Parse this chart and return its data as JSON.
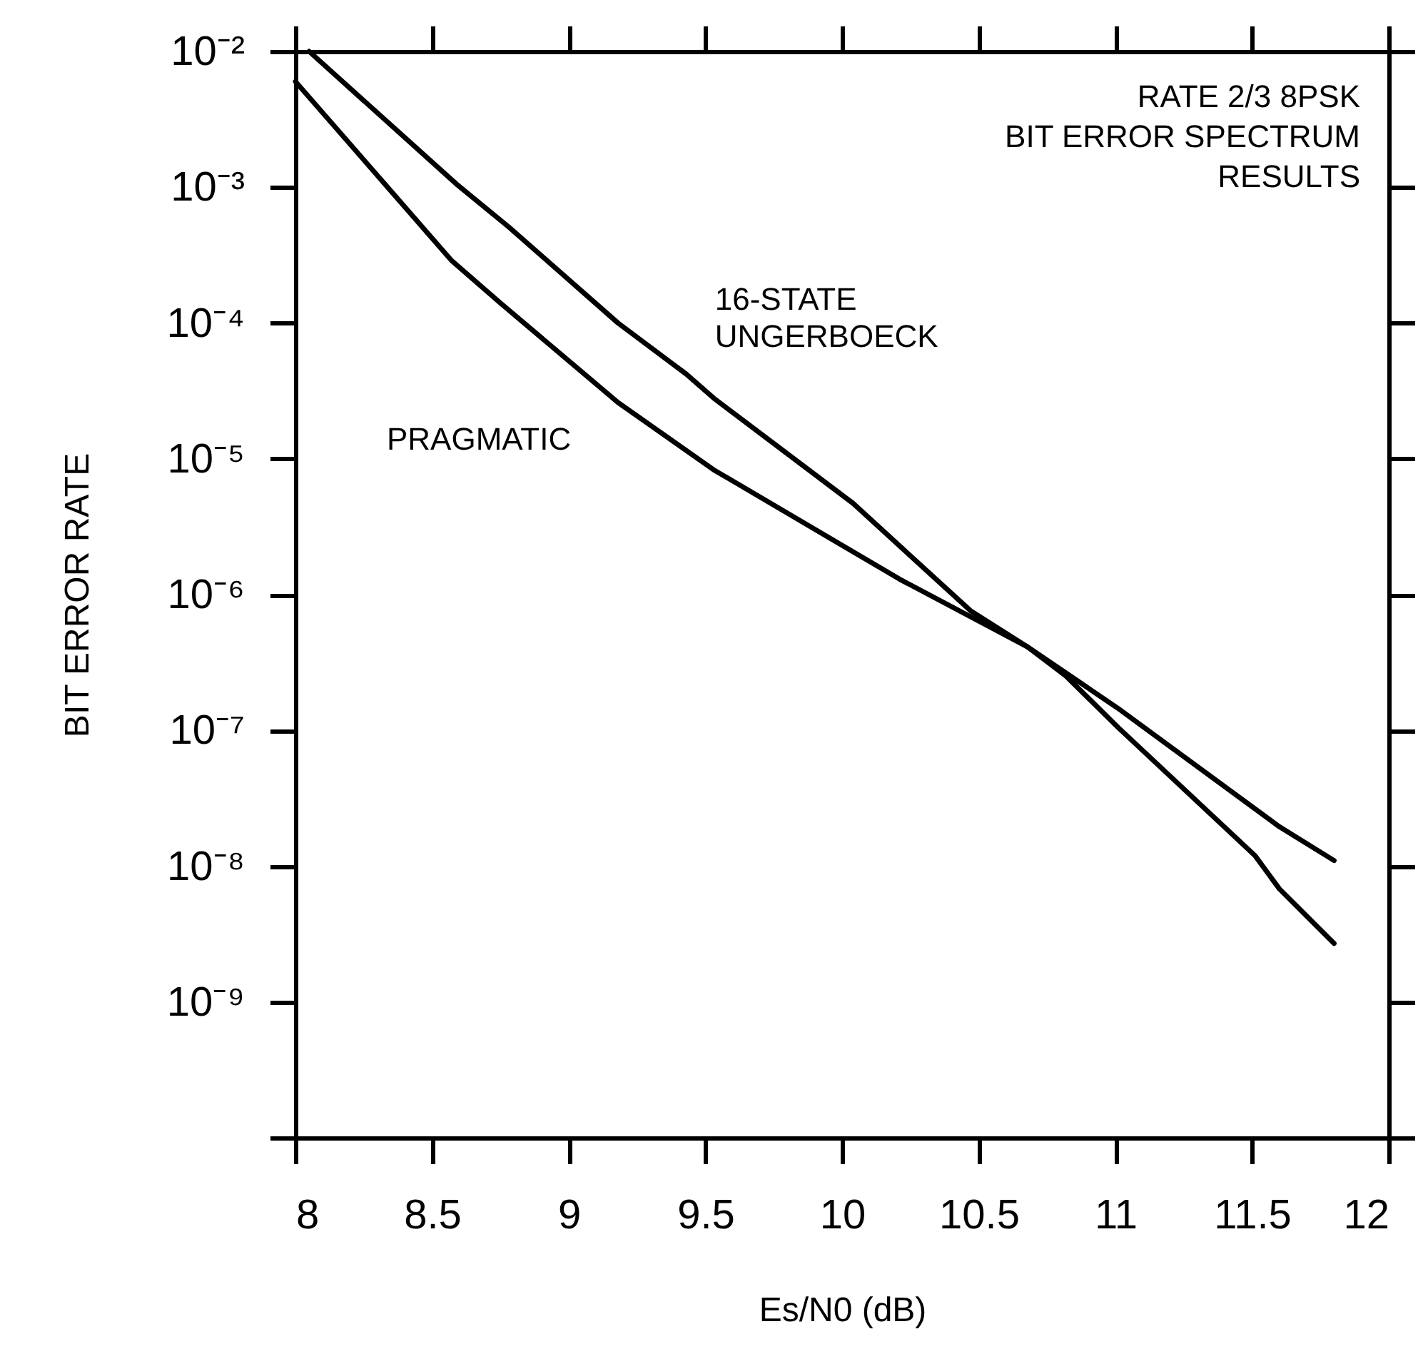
{
  "chart_data": {
    "type": "line",
    "title": "RATE 2/3 8PSK\nBIT ERROR SPECTRUM\nRESULTS",
    "xlabel": "Es/N0 (dB)",
    "ylabel": "BIT ERROR RATE",
    "xlim": [
      8,
      12
    ],
    "xticks": [
      8,
      8.5,
      9,
      9.5,
      10,
      10.5,
      11,
      11.5,
      12
    ],
    "ylim": [
      1e-10,
      0.01
    ],
    "yticks": [
      {
        "value": 1e-10,
        "label": null
      },
      {
        "value": 1e-09,
        "label": "10⁻⁹"
      },
      {
        "value": 1e-08,
        "label": "10⁻⁸"
      },
      {
        "value": 1e-07,
        "label": "10⁻⁷"
      },
      {
        "value": 1e-06,
        "label": "10⁻⁶"
      },
      {
        "value": 1e-05,
        "label": "10⁻⁵"
      },
      {
        "value": 0.0001,
        "label": "10⁻⁴"
      },
      {
        "value": 0.001,
        "label": "10⁻³"
      },
      {
        "value": 0.01,
        "label": "10⁻²"
      }
    ],
    "log": "y",
    "marker": "none",
    "line_style": "solid",
    "series": [
      {
        "name": "16-STATE\nUNGERBOECK",
        "color": "#000000",
        "x": [
          8.05,
          8.59,
          8.78,
          9.18,
          9.43,
          9.53,
          10.04,
          10.47,
          10.68,
          10.82,
          11.01,
          11.51,
          11.6,
          11.8
        ],
        "values": [
          0.01,
          0.00105,
          0.00051,
          0.0001,
          4.2e-05,
          2.8e-05,
          4.7e-06,
          7.6e-07,
          4.1e-07,
          2.5e-07,
          1.05e-07,
          1.2e-08,
          6.8e-09,
          2.7e-09
        ]
      },
      {
        "name": "PRAGMATIC",
        "color": "#000000",
        "x": [
          8.0,
          8.57,
          8.75,
          9.18,
          9.53,
          10.21,
          10.68,
          11.01,
          11.6,
          11.8
        ],
        "values": [
          0.006,
          0.00029,
          0.00014,
          2.6e-05,
          8.3e-06,
          1.3e-06,
          4.1e-07,
          1.45e-07,
          1.95e-08,
          1.1e-08
        ]
      }
    ]
  }
}
